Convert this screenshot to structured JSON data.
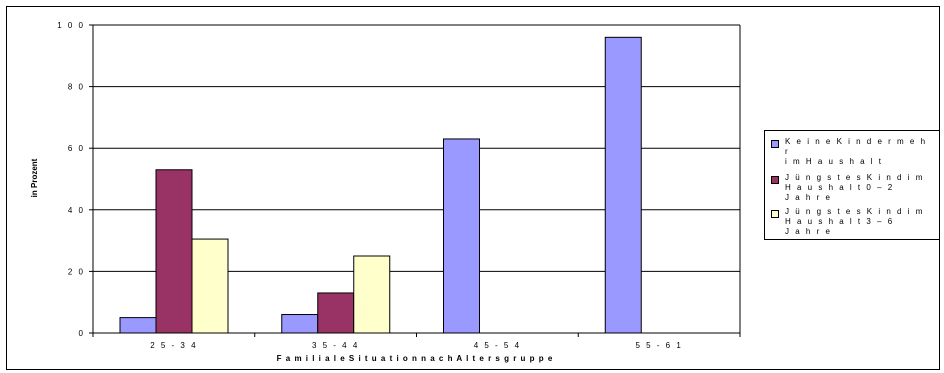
{
  "chart_data": {
    "type": "bar",
    "categories": [
      "2 5 - 3 4",
      "3 5 - 4 4",
      "4 5 - 5 4",
      "5 5 - 6 1"
    ],
    "series": [
      {
        "name": "K e i n e   K i n d e r  m e h r\ni m   H a u s h a l t",
        "values": [
          5,
          6,
          63,
          96
        ],
        "color": "#9999ff"
      },
      {
        "name": "J ü n g s t e s   K i n d   i m\nH a u s h a l t 0   –   2\nJ a h r e",
        "values": [
          53,
          13,
          0,
          0
        ],
        "color": "#993366"
      },
      {
        "name": " J ü n g s t e s   K i n d  i m\nH a u s h a l t   3   –   6\nJ a h r e",
        "values": [
          30.5,
          25,
          0,
          0
        ],
        "color": "#ffffcc"
      }
    ],
    "xlabel": "F a m i l i a l e   S i t u a t i o n   n a c h   A l t e r s g r u p p e",
    "ylabel": "in Prozent",
    "ylim": [
      0,
      100
    ],
    "yticks": [
      "0",
      "2 0",
      "4 0",
      "6 0",
      "8 0",
      "1 0 0"
    ],
    "ytick_values": [
      0,
      20,
      40,
      60,
      80,
      100
    ],
    "grid": true,
    "legend_position": "right"
  }
}
